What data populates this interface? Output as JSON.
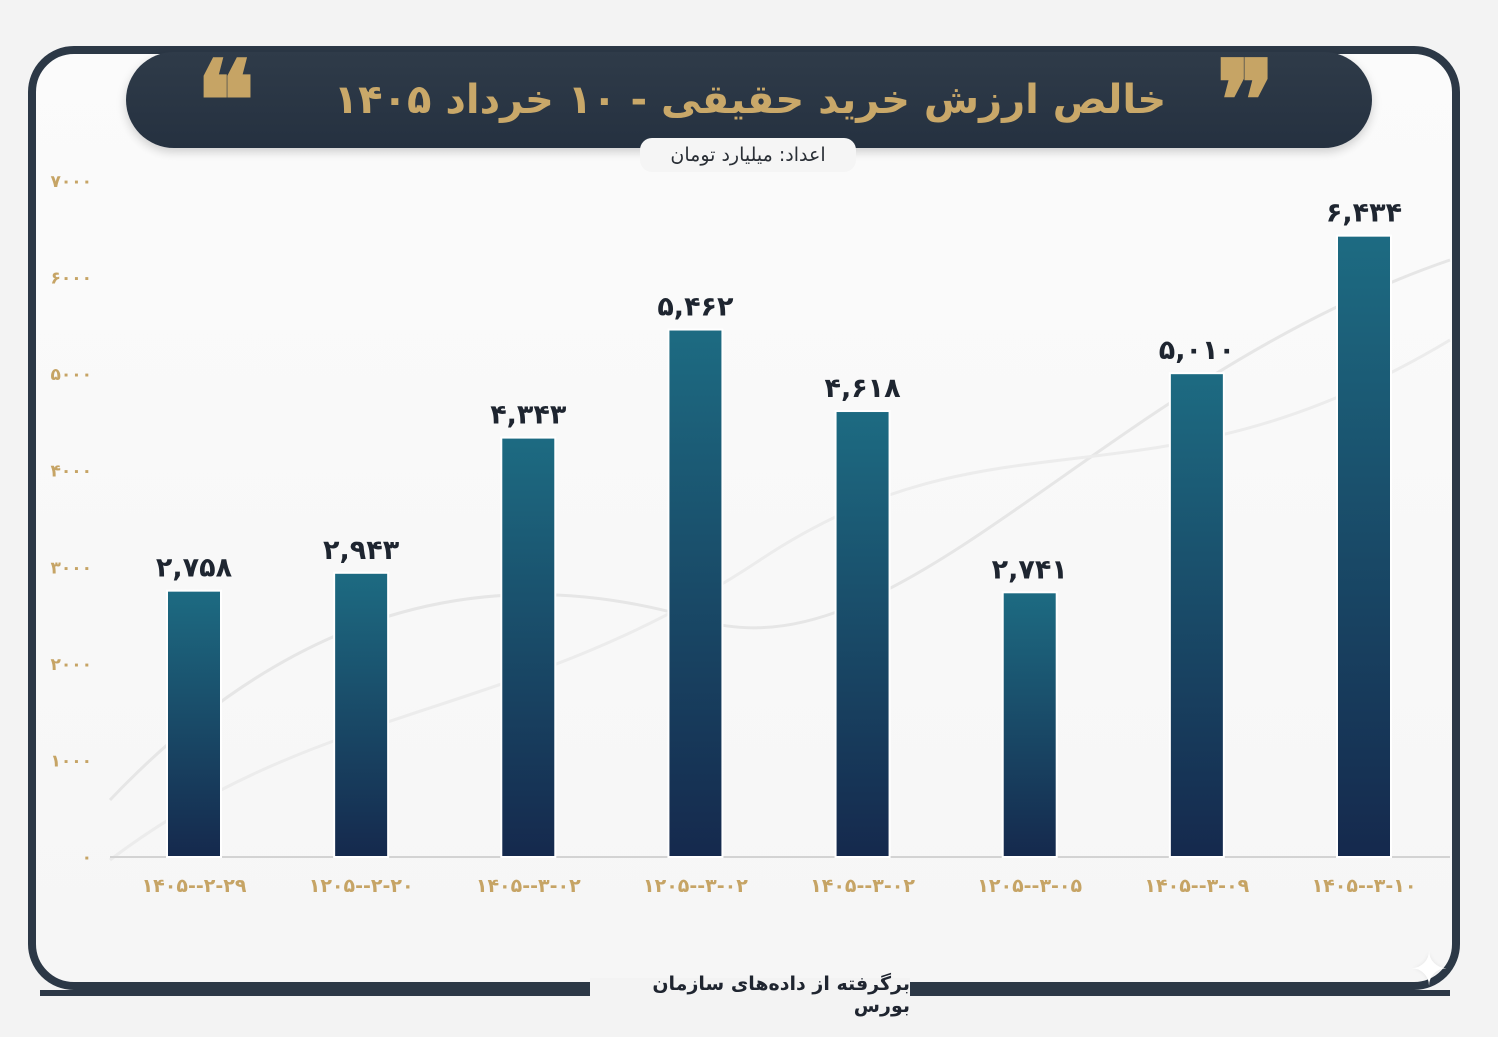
{
  "header": {
    "title": "خالص ارزش خرید حقیقی - ۱۰ خرداد ۱۴۰۵",
    "quote_open": "❝",
    "quote_close": "❞",
    "unit": "اعداد: میلیارد تومان"
  },
  "footer": {
    "source": "برگرفته از داده‌های سازمان بورس"
  },
  "colors": {
    "frame": "#2c3846",
    "gold": "#c6a465",
    "bar_top": "#1d6b82",
    "bar_bottom": "#15294d"
  },
  "chart_data": {
    "type": "bar",
    "categories": [
      "۱۴۰۵--۲-۲۹",
      "۱۲۰۵--۲-۲۰",
      "۱۴۰۵--۳-۰۲",
      "۱۲۰۵--۳-۰۲",
      "۱۴۰۵--۳-۰۲",
      "۱۲۰۵--۳-۰۵",
      "۱۴۰۵--۳-۰۹",
      "۱۴۰۵--۳-۱۰"
    ],
    "values": [
      2758,
      2943,
      4343,
      5462,
      4618,
      2741,
      5010,
      6434
    ],
    "value_labels": [
      "۲,۷۵۸",
      "۲,۹۴۳",
      "۴,۳۴۳",
      "۵,۴۶۲",
      "۴,۶۱۸",
      "۲,۷۴۱",
      "۵,۰۱۰",
      "۶,۴۳۴"
    ],
    "ylim": [
      0,
      7000
    ],
    "yticks": [
      0,
      1000,
      2000,
      3000,
      4000,
      5000,
      6000,
      7000
    ],
    "ytick_labels": [
      "۰",
      "۱۰۰۰",
      "۲۰۰۰",
      "۳۰۰۰",
      "۴۰۰۰",
      "۵۰۰۰",
      "۶۰۰۰",
      "۷۰۰۰"
    ],
    "grid": false,
    "legend": "none"
  }
}
